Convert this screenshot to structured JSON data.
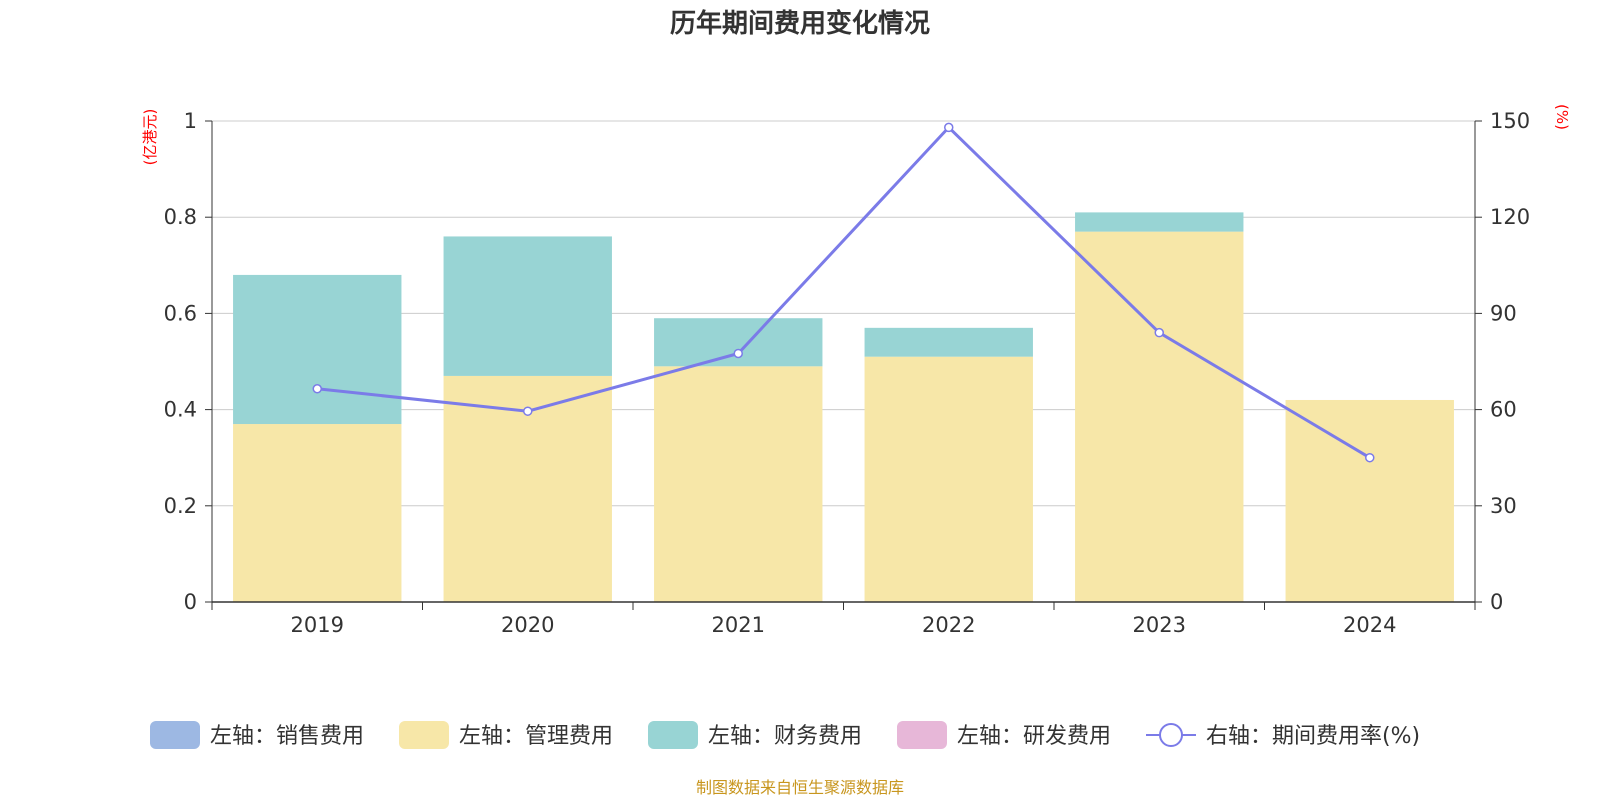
{
  "chart_data": {
    "type": "bar",
    "title": "历年期间费用变化情况",
    "categories": [
      "2019",
      "2020",
      "2021",
      "2022",
      "2023",
      "2024"
    ],
    "left_axis": {
      "unit": "(亿港元)",
      "ylim": [
        0,
        1
      ],
      "ticks": [
        "0",
        "0.2",
        "0.4",
        "0.6",
        "0.8",
        "1"
      ]
    },
    "right_axis": {
      "unit": "(%)",
      "ylim": [
        0,
        150
      ],
      "ticks": [
        "0",
        "30",
        "60",
        "90",
        "120",
        "150"
      ]
    },
    "stacked": true,
    "series": [
      {
        "name": "左轴：销售费用",
        "axis": "left",
        "kind": "bar",
        "color": "#9db8e3",
        "values": [
          0,
          0,
          0,
          0,
          0,
          0
        ]
      },
      {
        "name": "左轴：管理费用",
        "axis": "left",
        "kind": "bar",
        "color": "#f7e7a8",
        "values": [
          0.37,
          0.47,
          0.49,
          0.51,
          0.77,
          0.42
        ]
      },
      {
        "name": "左轴：财务费用",
        "axis": "left",
        "kind": "bar",
        "color": "#98d4d4",
        "values": [
          0.31,
          0.29,
          0.1,
          0.06,
          0.04,
          0
        ]
      },
      {
        "name": "左轴：研发费用",
        "axis": "left",
        "kind": "bar",
        "color": "#e7b7d8",
        "values": [
          0,
          0,
          0,
          0,
          0,
          0
        ]
      },
      {
        "name": "右轴：期间费用率(%)",
        "axis": "right",
        "kind": "line",
        "color": "#7b7be8",
        "values": [
          66.5,
          59.5,
          77.5,
          148,
          84,
          45
        ]
      }
    ],
    "grid": true,
    "legend_position": "bottom"
  },
  "source": "制图数据来自恒生聚源数据库"
}
